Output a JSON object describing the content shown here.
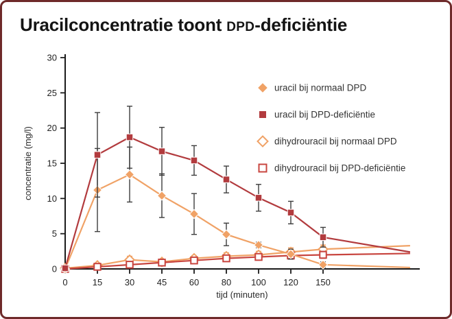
{
  "title": {
    "pre": "Uracilconcentratie toont ",
    "smallcaps": "DPD",
    "post": "-deficiëntie"
  },
  "colors": {
    "orange": "#f0a266",
    "dark_red": "#b23b3e",
    "open_red": "#c8453f",
    "border": "#6e2a2a",
    "axis": "#1a1a1a",
    "error_bar": "#3c3c3c"
  },
  "chart_data": {
    "type": "line",
    "title": "Uracilconcentratie toont DPD-deficiëntie",
    "xlabel": "tijd (minuten)",
    "ylabel": "concentratie (mg/l)",
    "ylim": [
      0,
      30
    ],
    "yticks": [
      0,
      5,
      10,
      15,
      20,
      25,
      30
    ],
    "categories": [
      "0",
      "15",
      "30",
      "45",
      "60",
      "80",
      "100",
      "120",
      "150"
    ],
    "x_positions": [
      0,
      1,
      2,
      3,
      4,
      5,
      6,
      7,
      8,
      10.7
    ],
    "grid": false,
    "legend_position": "right-center",
    "series": [
      {
        "name": "uracil bij normaal DPD",
        "marker": "diamond",
        "style": "filled",
        "color": "#f0a266",
        "values": [
          0,
          11.2,
          13.4,
          10.4,
          7.8,
          4.9,
          3.4,
          2.1,
          0.6,
          0.2
        ],
        "errors": [
          0,
          5.9,
          3.9,
          3.1,
          2.9,
          1.6,
          0.4,
          0.7,
          0.4,
          0
        ]
      },
      {
        "name": "uracil bij DPD-deficiëntie",
        "marker": "square",
        "style": "filled",
        "color": "#b23b3e",
        "values": [
          0.1,
          16.2,
          18.7,
          16.7,
          15.4,
          12.7,
          10.1,
          8.0,
          4.5,
          2.4
        ],
        "errors": [
          0,
          6.0,
          4.4,
          3.4,
          2.1,
          1.9,
          1.9,
          1.6,
          1.4,
          0
        ]
      },
      {
        "name": "dihydrouracil bij normaal DPD",
        "marker": "diamond",
        "style": "open",
        "color": "#f0a266",
        "values": [
          0.1,
          0.5,
          1.3,
          1.0,
          1.5,
          1.8,
          2.0,
          2.4,
          2.8,
          3.3
        ],
        "errors": [
          0,
          0,
          0.5,
          0.3,
          0.4,
          0.5,
          0.5,
          0.6,
          0.6,
          0
        ]
      },
      {
        "name": "dihydrouracil bij DPD-deficiëntie",
        "marker": "square",
        "style": "open",
        "color": "#c8453f",
        "values": [
          0,
          0.3,
          0.6,
          0.9,
          1.2,
          1.5,
          1.7,
          1.9,
          2.0,
          2.2
        ],
        "errors": [
          0,
          0,
          0.2,
          0.3,
          0.3,
          0.4,
          0.4,
          0.5,
          0.5,
          0
        ]
      }
    ]
  }
}
